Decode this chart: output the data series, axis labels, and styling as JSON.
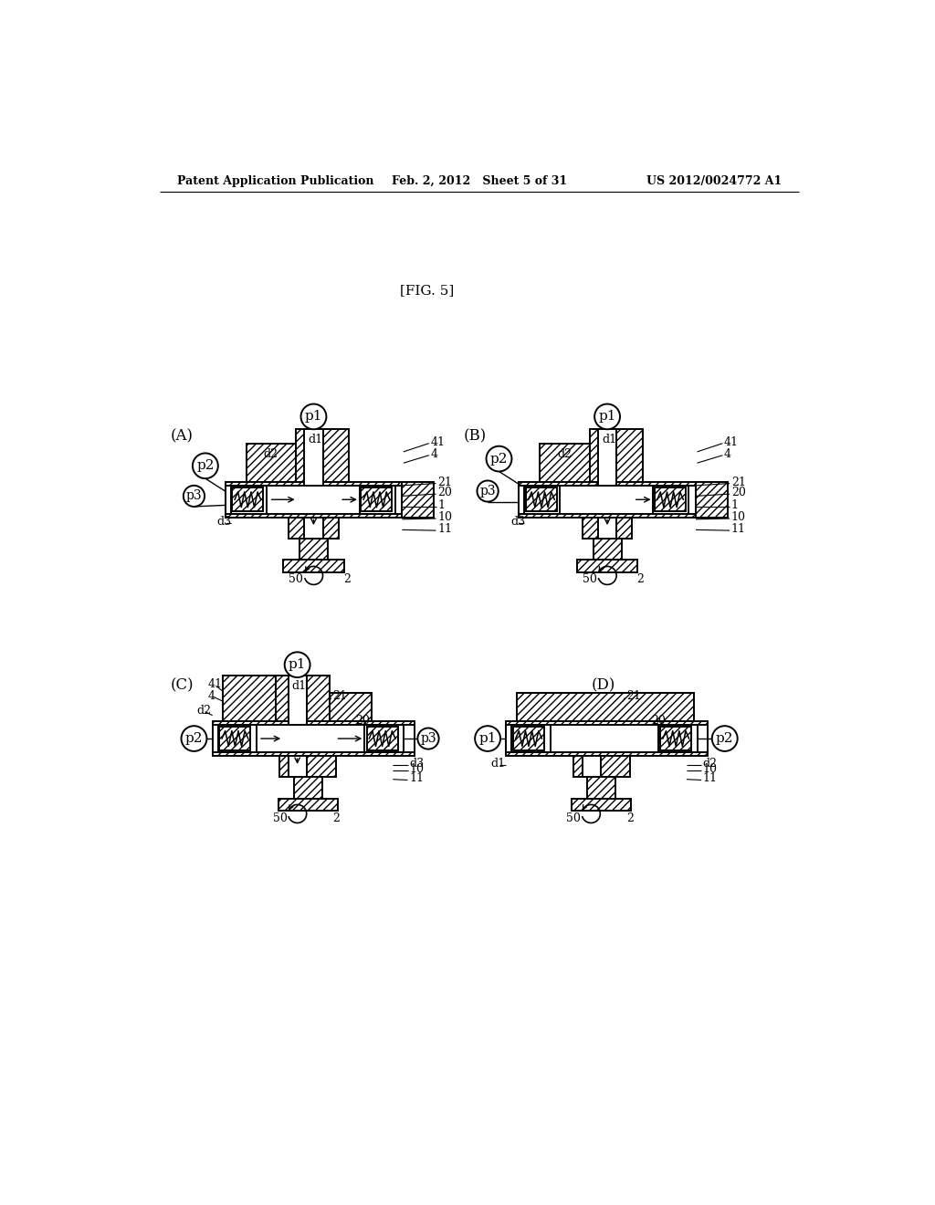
{
  "header_left": "Patent Application Publication",
  "header_mid": "Feb. 2, 2012   Sheet 5 of 31",
  "header_right": "US 2012/0024772 A1",
  "fig_label": "[FIG. 5]",
  "bg": "#ffffff"
}
